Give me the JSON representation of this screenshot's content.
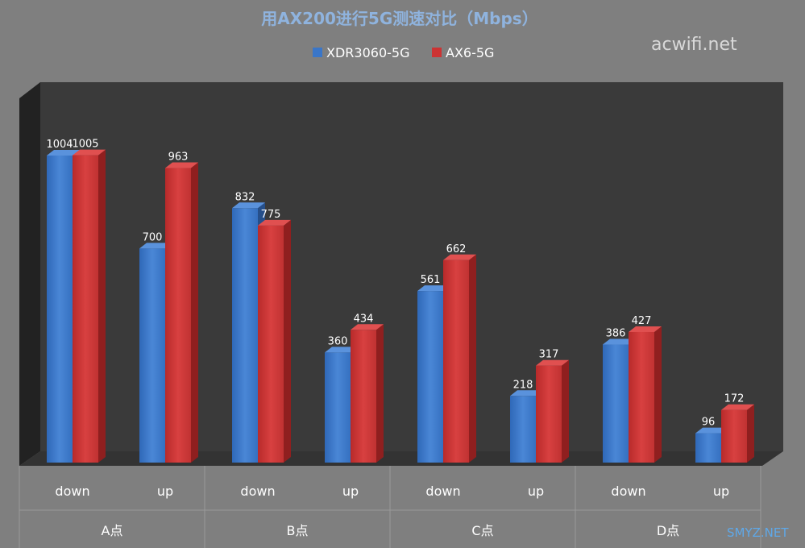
{
  "chart_data": {
    "type": "bar",
    "title": "用AX200进行5G测速对比（Mbps）",
    "categories": [
      "down",
      "up",
      "down",
      "up",
      "down",
      "up",
      "down",
      "up"
    ],
    "groups": [
      "A点",
      "B点",
      "C点",
      "D点"
    ],
    "series": [
      {
        "name": "XDR3060-5G",
        "color": "#3a76c8",
        "values": [
          1004,
          700,
          832,
          360,
          561,
          218,
          386,
          96
        ]
      },
      {
        "name": "AX6-5G",
        "color": "#cc3333",
        "values": [
          1005,
          963,
          775,
          434,
          662,
          317,
          427,
          172
        ]
      }
    ],
    "ylim": [
      0,
      1100
    ],
    "grid": false,
    "legend": "top-center",
    "style": "3d-column"
  },
  "watermarks": {
    "top_right": "acwifi.net",
    "bottom_right": "SMYZ.NET"
  }
}
